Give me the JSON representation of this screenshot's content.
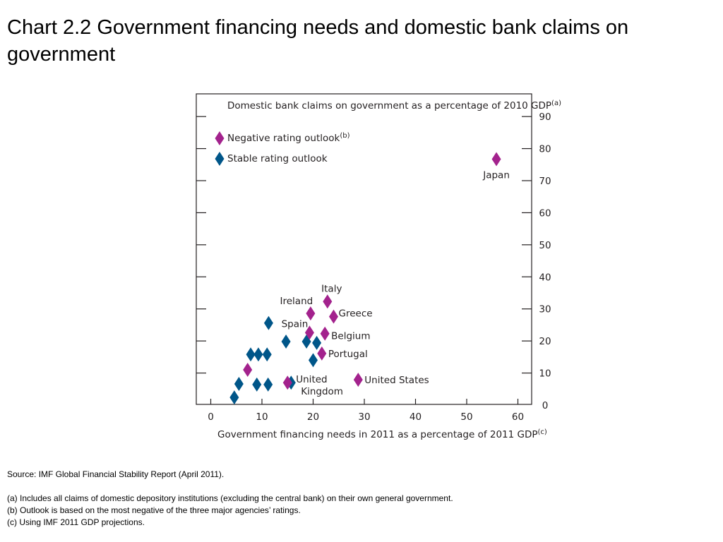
{
  "title": "Chart 2.2  Government financing needs and domestic bank claims on government",
  "colors": {
    "negative": "#a3228d",
    "stable": "#005689",
    "axis": "#231f20"
  },
  "chart_data": {
    "type": "scatter",
    "ylabel": "Domestic bank claims on government as a percentage of 2010 GDP",
    "ylabel_note": "(a)",
    "xlabel": "Government financing needs in 2011 as a percentage of 2011 GDP",
    "xlabel_note": "(c)",
    "xlim": [
      -3,
      63
    ],
    "ylim": [
      0,
      95
    ],
    "xticks": [
      0,
      10,
      20,
      30,
      40,
      50,
      60
    ],
    "yticks": [
      0,
      10,
      20,
      30,
      40,
      50,
      60,
      70,
      80,
      90
    ],
    "grid": false,
    "legend_position": "top-left",
    "series": [
      {
        "name": "Negative rating outlook",
        "name_note": "(b)",
        "color": "#a3228d",
        "points": [
          {
            "x": 55.8,
            "y": 76.7,
            "label": "Japan"
          },
          {
            "x": 22.8,
            "y": 32.3,
            "label": "Italy"
          },
          {
            "x": 19.5,
            "y": 28.6,
            "label": "Ireland"
          },
          {
            "x": 24.0,
            "y": 27.6,
            "label": "Greece"
          },
          {
            "x": 19.3,
            "y": 22.6,
            "label": "Spain"
          },
          {
            "x": 22.3,
            "y": 22.3,
            "label": "Belgium"
          },
          {
            "x": 21.7,
            "y": 16.1,
            "label": "Portugal"
          },
          {
            "x": 28.8,
            "y": 7.9,
            "label": "United States"
          },
          {
            "x": 15.0,
            "y": 7.0,
            "label": "United Kingdom"
          },
          {
            "x": 7.2,
            "y": 11.0,
            "label": ""
          }
        ]
      },
      {
        "name": "Stable rating outlook",
        "name_note": "",
        "color": "#005689",
        "points": [
          {
            "x": 11.3,
            "y": 25.6
          },
          {
            "x": 14.7,
            "y": 19.8
          },
          {
            "x": 18.7,
            "y": 19.8
          },
          {
            "x": 20.7,
            "y": 19.4
          },
          {
            "x": 20.0,
            "y": 14.0
          },
          {
            "x": 15.7,
            "y": 7.0
          },
          {
            "x": 7.8,
            "y": 15.8
          },
          {
            "x": 9.3,
            "y": 15.8
          },
          {
            "x": 11.0,
            "y": 15.8
          },
          {
            "x": 5.5,
            "y": 6.6
          },
          {
            "x": 9.0,
            "y": 6.4
          },
          {
            "x": 11.2,
            "y": 6.4
          },
          {
            "x": 4.6,
            "y": 2.4
          }
        ]
      }
    ]
  },
  "notes": {
    "source": "Source:  IMF Global Financial Stability Report (April 2011).",
    "a": "(a)  Includes all claims of domestic depository institutions (excluding the central bank) on their own general government.",
    "b": "(b)  Outlook is based on the most negative of the three major agencies’ ratings.",
    "c": "(c)  Using IMF 2011 GDP projections."
  }
}
